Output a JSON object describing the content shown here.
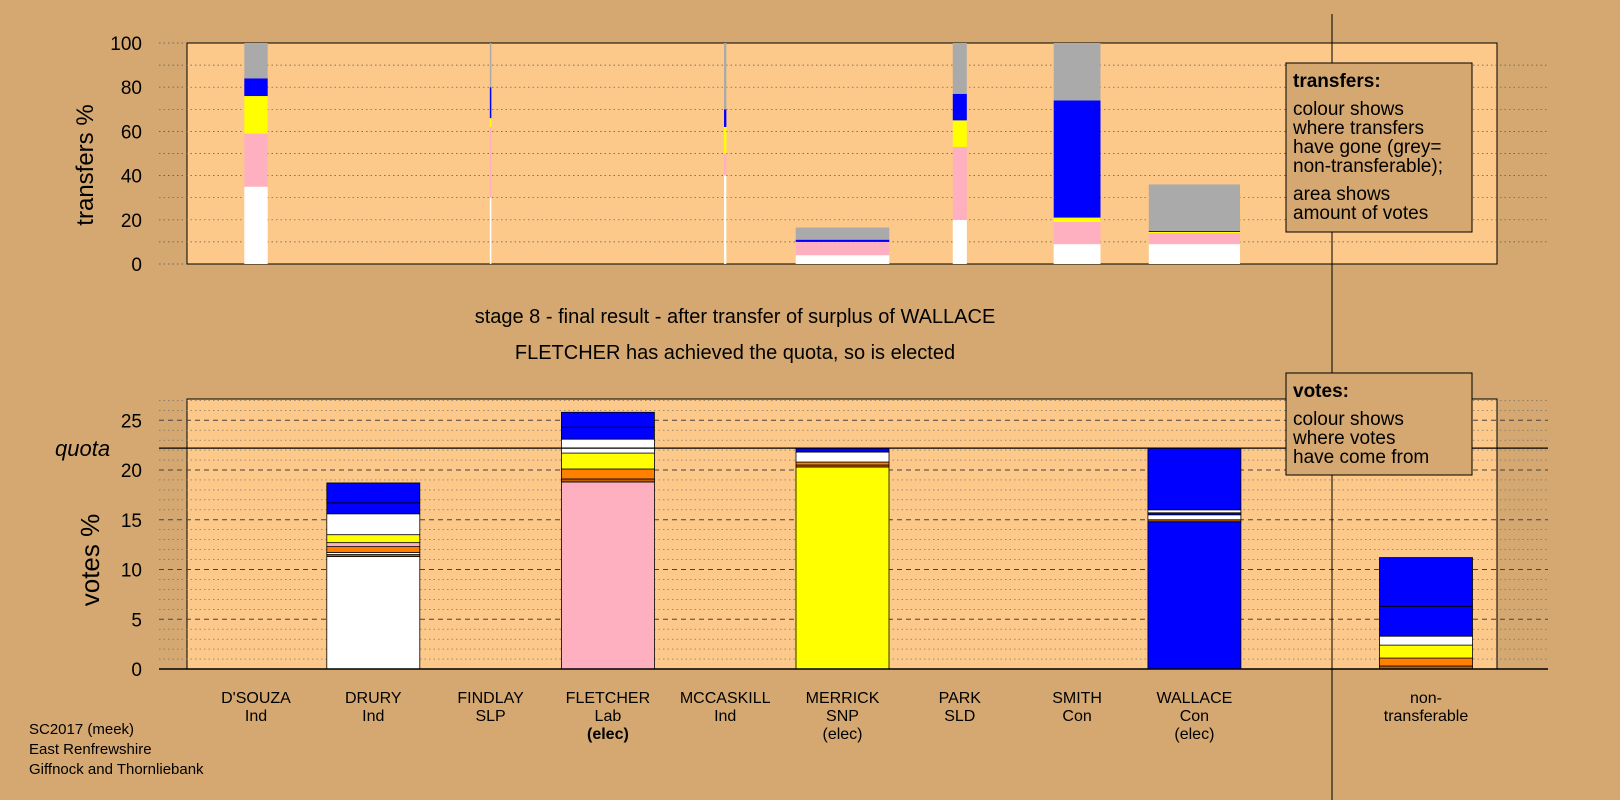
{
  "source_note": [
    "SC2017 (meek)",
    "East Renfrewshire",
    "Giffnock and Thornliebank"
  ],
  "heading": {
    "line1": "stage 8 - final result - after transfer of surplus of WALLACE",
    "line2": "FLETCHER has achieved the quota, so is elected"
  },
  "colors": {
    "background": "#d4a870",
    "plot_bg": "#fdc98a",
    "Ind": "#ffffff",
    "Lab": "#ffb0c0",
    "SNP": "#ffff00",
    "Con": "#0000ff",
    "SLP": "#ff8000",
    "SLD": "#c06000",
    "non_transferable": "#aaaaaa"
  },
  "legend_transfers": {
    "title": "transfers:",
    "lines": [
      "colour shows",
      "where transfers",
      "have gone (grey=",
      "non-transferable);"
    ],
    "lines2": [
      "area shows",
      "amount of votes"
    ]
  },
  "legend_votes": {
    "title": "votes:",
    "lines": [
      "colour shows",
      "where votes",
      "have come from"
    ]
  },
  "chart_data": [
    {
      "type": "bar",
      "name": "transfers",
      "ylabel": "transfers %",
      "ylim": [
        0,
        100
      ],
      "yticks": [
        0,
        20,
        40,
        60,
        80,
        100
      ],
      "grid": "dotted",
      "categories": [
        "D'SOUZA",
        "DRURY",
        "FINDLAY",
        "FLETCHER",
        "MCCASKILL",
        "MERRICK",
        "PARK",
        "SMITH",
        "WALLACE"
      ],
      "bars": [
        {
          "candidate": "D'SOUZA",
          "width_share": 0.2,
          "segments": [
            {
              "party": "Ind",
              "value": 35
            },
            {
              "party": "Lab",
              "value": 24
            },
            {
              "party": "SNP",
              "value": 17
            },
            {
              "party": "Con",
              "value": 8
            },
            {
              "party": "non_transferable",
              "value": 16
            }
          ]
        },
        {
          "candidate": "FINDLAY",
          "width_share": 0.01,
          "segments": [
            {
              "party": "Ind",
              "value": 30
            },
            {
              "party": "Lab",
              "value": 32
            },
            {
              "party": "SNP",
              "value": 4
            },
            {
              "party": "Con",
              "value": 14
            },
            {
              "party": "non_transferable",
              "value": 20
            }
          ]
        },
        {
          "candidate": "MCCASKILL",
          "width_share": 0.02,
          "segments": [
            {
              "party": "Ind",
              "value": 40
            },
            {
              "party": "Lab",
              "value": 10
            },
            {
              "party": "SNP",
              "value": 12
            },
            {
              "party": "Con",
              "value": 8
            },
            {
              "party": "non_transferable",
              "value": 30
            }
          ]
        },
        {
          "candidate": "MERRICK",
          "width_share": 0.8,
          "segments": [
            {
              "party": "Ind",
              "value": 4
            },
            {
              "party": "Lab",
              "value": 6
            },
            {
              "party": "Con",
              "value": 1
            },
            {
              "party": "non_transferable",
              "value": 5.5
            }
          ]
        },
        {
          "candidate": "PARK",
          "width_share": 0.12,
          "segments": [
            {
              "party": "Ind",
              "value": 20
            },
            {
              "party": "Lab",
              "value": 33
            },
            {
              "party": "SNP",
              "value": 12
            },
            {
              "party": "Con",
              "value": 12
            },
            {
              "party": "non_transferable",
              "value": 23
            }
          ]
        },
        {
          "candidate": "SMITH",
          "width_share": 0.4,
          "segments": [
            {
              "party": "Ind",
              "value": 9
            },
            {
              "party": "Lab",
              "value": 10
            },
            {
              "party": "SNP",
              "value": 2
            },
            {
              "party": "Con",
              "value": 53
            },
            {
              "party": "non_transferable",
              "value": 26
            }
          ]
        },
        {
          "candidate": "WALLACE",
          "width_share": 0.78,
          "segments": [
            {
              "party": "Ind",
              "value": 9
            },
            {
              "party": "Lab",
              "value": 5
            },
            {
              "party": "SNP",
              "value": 0.5
            },
            {
              "party": "Con",
              "value": 0.5
            },
            {
              "party": "non_transferable",
              "value": 21
            }
          ]
        }
      ]
    },
    {
      "type": "bar",
      "name": "votes",
      "ylabel": "votes %",
      "ylim": [
        0,
        27
      ],
      "yticks": [
        0,
        5,
        10,
        15,
        20,
        25
      ],
      "quota": 22.2,
      "quota_label": "quota",
      "grid": "dashed",
      "categories": [
        {
          "name": "D'SOUZA",
          "party": "Ind",
          "status": ""
        },
        {
          "name": "DRURY",
          "party": "Ind",
          "status": ""
        },
        {
          "name": "FINDLAY",
          "party": "SLP",
          "status": ""
        },
        {
          "name": "FLETCHER",
          "party": "Lab",
          "status": "(elec)"
        },
        {
          "name": "MCCASKILL",
          "party": "Ind",
          "status": ""
        },
        {
          "name": "MERRICK",
          "party": "SNP",
          "status": "(elec)"
        },
        {
          "name": "PARK",
          "party": "SLD",
          "status": ""
        },
        {
          "name": "SMITH",
          "party": "Con",
          "status": ""
        },
        {
          "name": "WALLACE",
          "party": "Con",
          "status": "(elec)"
        },
        {
          "name": "non-\ntransferable",
          "party": "",
          "status": ""
        }
      ],
      "bars": [
        {
          "candidate": "DRURY",
          "segments": [
            {
              "party": "Ind",
              "value": 11.3
            },
            {
              "party": "SLD",
              "value": 0.2
            },
            {
              "party": "Ind",
              "value": 0.2
            },
            {
              "party": "SLP",
              "value": 0.6
            },
            {
              "party": "Lab",
              "value": 0.4
            },
            {
              "party": "SNP",
              "value": 0.8
            },
            {
              "party": "Ind",
              "value": 2.1
            },
            {
              "party": "Con",
              "value": 1.1
            },
            {
              "party": "Con",
              "value": 2.0
            }
          ]
        },
        {
          "candidate": "FLETCHER",
          "segments": [
            {
              "party": "Lab",
              "value": 18.8
            },
            {
              "party": "SLD",
              "value": 0.3
            },
            {
              "party": "SLP",
              "value": 1.0
            },
            {
              "party": "SNP",
              "value": 1.6
            },
            {
              "party": "Ind",
              "value": 1.4
            },
            {
              "party": "Con",
              "value": 1.2
            },
            {
              "party": "Con",
              "value": 1.5
            }
          ]
        },
        {
          "candidate": "MERRICK",
          "segments": [
            {
              "party": "SNP",
              "value": 20.3
            },
            {
              "party": "SLD",
              "value": 0.2
            },
            {
              "party": "SLP",
              "value": 0.3
            },
            {
              "party": "Ind",
              "value": 1.0
            },
            {
              "party": "Con",
              "value": 0.4
            }
          ]
        },
        {
          "candidate": "WALLACE",
          "segments": [
            {
              "party": "Con",
              "value": 14.8
            },
            {
              "party": "SLD",
              "value": 0.2
            },
            {
              "party": "Ind",
              "value": 0.5
            },
            {
              "party": "Con",
              "value": 0.2
            },
            {
              "party": "Ind",
              "value": 0.3
            },
            {
              "party": "Con",
              "value": 6.2
            }
          ]
        },
        {
          "candidate": "non-transferable",
          "segments": [
            {
              "party": "SLD",
              "value": 0.3
            },
            {
              "party": "SLP",
              "value": 0.8
            },
            {
              "party": "SNP",
              "value": 1.3
            },
            {
              "party": "Ind",
              "value": 0.9
            },
            {
              "party": "Con",
              "value": 3.0
            },
            {
              "party": "Con",
              "value": 4.9
            }
          ]
        }
      ]
    }
  ]
}
